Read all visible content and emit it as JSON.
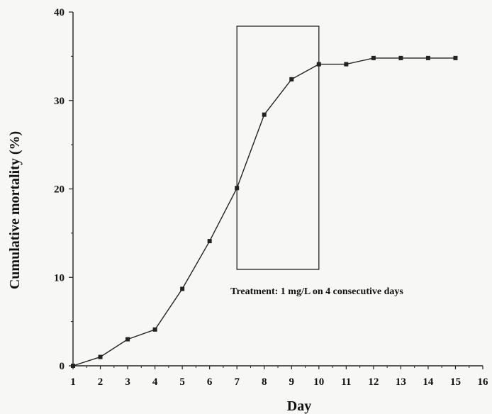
{
  "chart_data": {
    "type": "line",
    "title": "",
    "xlabel": "Day",
    "ylabel": "Cumulative mortality (%)",
    "xlim": [
      1,
      16
    ],
    "ylim": [
      0,
      40
    ],
    "x_ticks": [
      1,
      2,
      3,
      4,
      5,
      6,
      7,
      8,
      9,
      10,
      11,
      12,
      13,
      14,
      15,
      16
    ],
    "y_ticks": [
      0,
      10,
      20,
      30,
      40
    ],
    "grid": false,
    "series": [
      {
        "x": [
          1,
          2,
          3,
          4,
          5,
          6,
          7,
          8,
          9,
          10,
          11,
          12,
          13,
          14,
          15
        ],
        "y": [
          0,
          1,
          3,
          4.1,
          8.7,
          14.1,
          20.1,
          28.4,
          32.4,
          34.1,
          34.1,
          34.8,
          34.8,
          34.8,
          34.8
        ]
      }
    ],
    "annotation": {
      "text": "Treatment: 1 mg/L on 4 consecutive days",
      "box_x": [
        7,
        10
      ],
      "box_y": [
        10.9,
        38.4
      ]
    }
  }
}
